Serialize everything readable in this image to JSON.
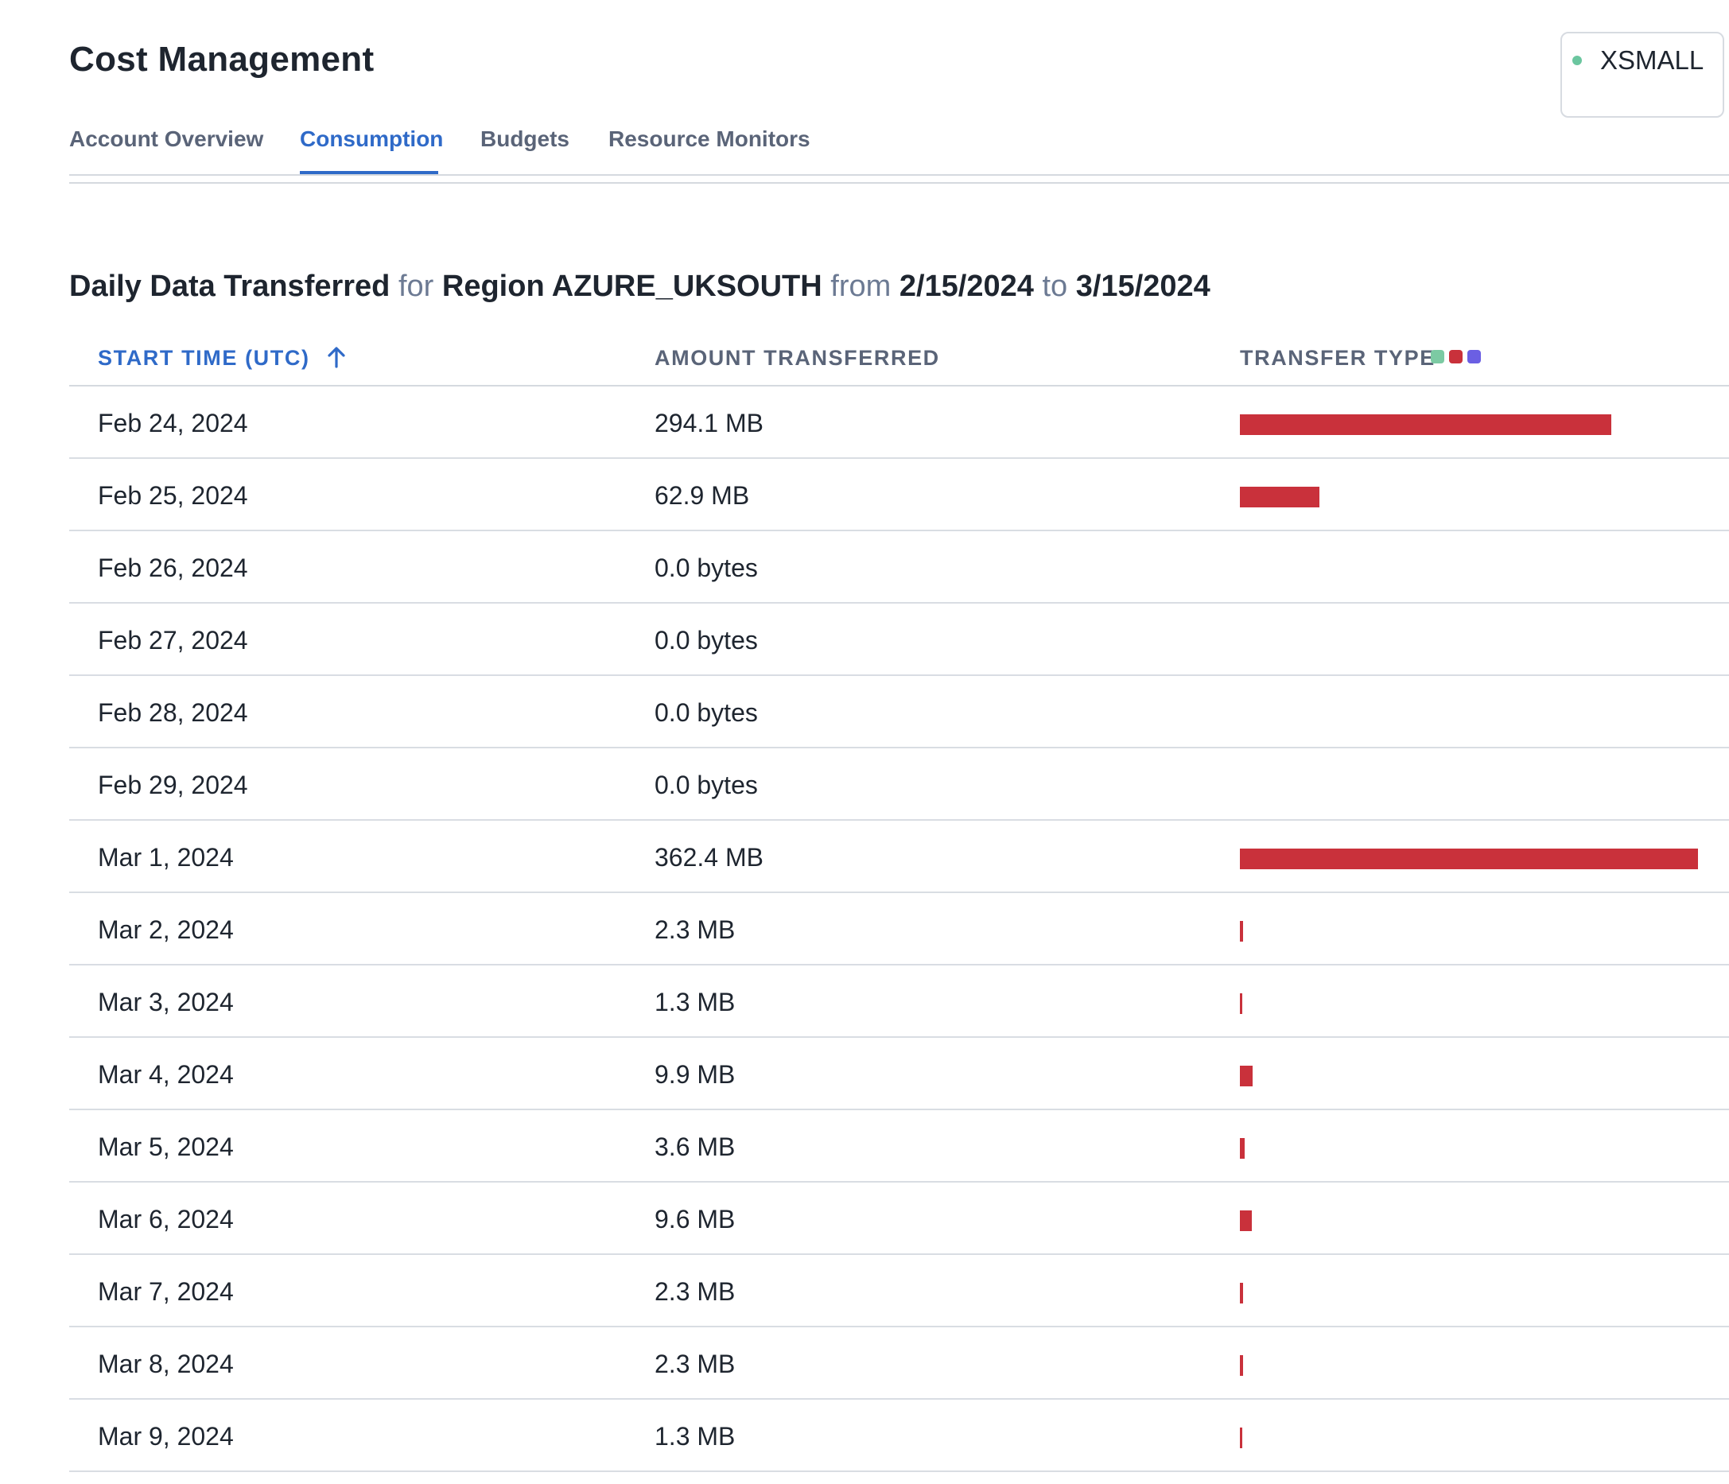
{
  "page": {
    "title": "Cost Management"
  },
  "warehouse": {
    "label": "XSMALL",
    "status_color": "#6bc69f"
  },
  "tabs": [
    {
      "label": "Account Overview",
      "active": false
    },
    {
      "label": "Consumption",
      "active": true
    },
    {
      "label": "Budgets",
      "active": false
    },
    {
      "label": "Resource Monitors",
      "active": false
    }
  ],
  "heading": {
    "part1": "Daily Data Transferred",
    "for": "for",
    "region": "Region AZURE_UKSOUTH",
    "from": "from",
    "start": "2/15/2024",
    "to": "to",
    "end": "3/15/2024"
  },
  "table": {
    "columns": {
      "start_time": "START TIME (UTC)",
      "amount": "AMOUNT TRANSFERRED",
      "transfer_type": "TRANSFER TYPE"
    },
    "sort_icon": "arrow-up-icon",
    "legend_colors": [
      "#7ccaa3",
      "#c9313b",
      "#6b5fe3"
    ],
    "bar_color": "#c9313b",
    "rows": [
      {
        "date": "Feb 24, 2024",
        "amount": "294.1 MB",
        "mb": 294.1
      },
      {
        "date": "Feb 25, 2024",
        "amount": "62.9 MB",
        "mb": 62.9
      },
      {
        "date": "Feb 26, 2024",
        "amount": "0.0 bytes",
        "mb": 0
      },
      {
        "date": "Feb 27, 2024",
        "amount": "0.0 bytes",
        "mb": 0
      },
      {
        "date": "Feb 28, 2024",
        "amount": "0.0 bytes",
        "mb": 0
      },
      {
        "date": "Feb 29, 2024",
        "amount": "0.0 bytes",
        "mb": 0
      },
      {
        "date": "Mar 1, 2024",
        "amount": "362.4 MB",
        "mb": 362.4
      },
      {
        "date": "Mar 2, 2024",
        "amount": "2.3 MB",
        "mb": 2.3
      },
      {
        "date": "Mar 3, 2024",
        "amount": "1.3 MB",
        "mb": 1.3
      },
      {
        "date": "Mar 4, 2024",
        "amount": "9.9 MB",
        "mb": 9.9
      },
      {
        "date": "Mar 5, 2024",
        "amount": "3.6 MB",
        "mb": 3.6
      },
      {
        "date": "Mar 6, 2024",
        "amount": "9.6 MB",
        "mb": 9.6
      },
      {
        "date": "Mar 7, 2024",
        "amount": "2.3 MB",
        "mb": 2.3
      },
      {
        "date": "Mar 8, 2024",
        "amount": "2.3 MB",
        "mb": 2.3
      },
      {
        "date": "Mar 9, 2024",
        "amount": "1.3 MB",
        "mb": 1.3
      }
    ]
  }
}
